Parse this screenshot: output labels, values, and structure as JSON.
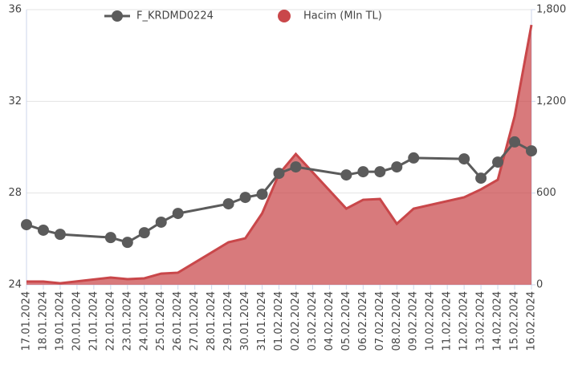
{
  "chart_data": {
    "type": "line-area",
    "xticks": [
      "17.01.2024",
      "18.01.2024",
      "19.01.2024",
      "20.01.2024",
      "21.01.2024",
      "22.01.2024",
      "23.01.2024",
      "24.01.2024",
      "25.01.2024",
      "26.01.2024",
      "27.01.2024",
      "28.01.2024",
      "29.01.2024",
      "30.01.2024",
      "31.01.2024",
      "01.02.2024",
      "02.02.2024",
      "03.02.2024",
      "04.02.2024",
      "05.02.2024",
      "06.02.2024",
      "07.02.2024",
      "08.02.2024",
      "09.02.2024",
      "10.02.2024",
      "11.02.2024",
      "12.02.2024",
      "13.02.2024",
      "14.02.2024",
      "15.02.2024",
      "16.02.2024"
    ],
    "x": [
      "17.01.2024",
      "18.01.2024",
      "19.01.2024",
      "22.01.2024",
      "23.01.2024",
      "24.01.2024",
      "25.01.2024",
      "26.01.2024",
      "29.01.2024",
      "30.01.2024",
      "31.01.2024",
      "01.02.2024",
      "02.02.2024",
      "05.02.2024",
      "06.02.2024",
      "07.02.2024",
      "08.02.2024",
      "09.02.2024",
      "12.02.2024",
      "13.02.2024",
      "14.02.2024",
      "15.02.2024",
      "16.02.2024"
    ],
    "series": [
      {
        "name": "F_KRDMD0224",
        "type": "line",
        "color": "#5b5b5b",
        "values": [
          26.62,
          26.38,
          26.2,
          26.06,
          25.85,
          26.27,
          26.73,
          27.11,
          27.53,
          27.81,
          27.95,
          28.86,
          29.14,
          28.79,
          28.93,
          28.93,
          29.14,
          29.53,
          29.49,
          28.65,
          29.35,
          30.23,
          29.84
        ]
      },
      {
        "name": "Hacim (Mln TL)",
        "type": "area",
        "axis": "y2",
        "color": "#c9474a",
        "values": [
          21,
          21,
          10,
          47,
          37,
          42,
          73,
          79,
          278,
          304,
          467,
          724,
          855,
          498,
          556,
          561,
          399,
          498,
          572,
          624,
          687,
          1102,
          1700
        ]
      }
    ],
    "ylim": [
      24,
      36
    ],
    "yticks": [
      24,
      28,
      32,
      36
    ],
    "y2lim": [
      0,
      1800
    ],
    "y2ticks": [
      0,
      600,
      {
        "value": 1200,
        "label": "1,200"
      },
      {
        "value": 1800,
        "label": "1,800"
      }
    ],
    "grid": true
  }
}
